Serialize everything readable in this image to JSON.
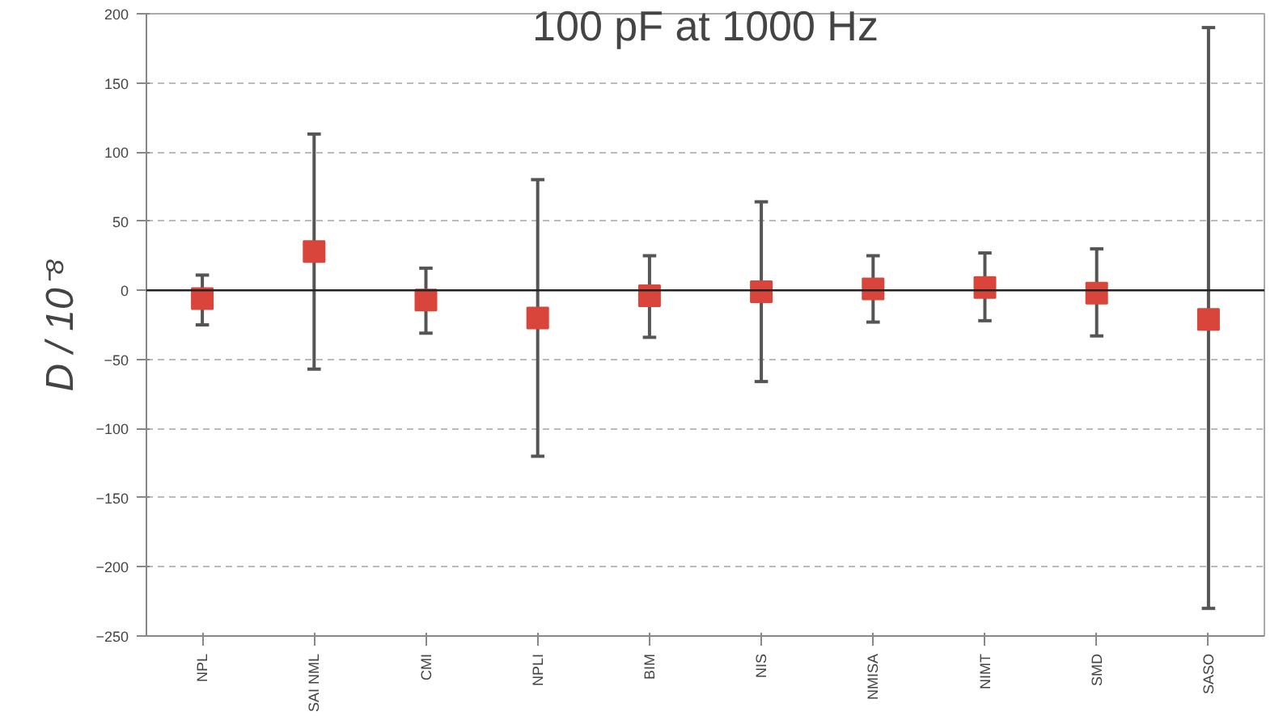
{
  "chart_data": {
    "type": "scatter",
    "title": "100 pF at 1000 Hz",
    "ylabel": "D / 10⁻⁸",
    "categories": [
      "NPL",
      "SAI NML",
      "CMI",
      "NPLI",
      "BIM",
      "NIS",
      "NMISA",
      "NIMT",
      "SMD",
      "SASO"
    ],
    "values": [
      -6,
      28,
      -7,
      -20,
      -4,
      -1,
      1,
      2,
      -2,
      -21
    ],
    "errors": [
      [
        -25,
        11
      ],
      [
        -57,
        113
      ],
      [
        -31,
        16
      ],
      [
        -120,
        80
      ],
      [
        -34,
        25
      ],
      [
        -66,
        64
      ],
      [
        -23,
        25
      ],
      [
        -22,
        27
      ],
      [
        -33,
        30
      ],
      [
        -230,
        190
      ]
    ],
    "color": "#d9453b",
    "marker": "square",
    "ylim": [
      -250,
      200
    ],
    "yticks": [
      -250,
      -200,
      -150,
      -100,
      -50,
      0,
      50,
      100,
      150,
      200
    ],
    "grid": "y",
    "ref_lines": [
      {
        "axis": "y",
        "value": 0,
        "color": "#222222"
      }
    ]
  }
}
